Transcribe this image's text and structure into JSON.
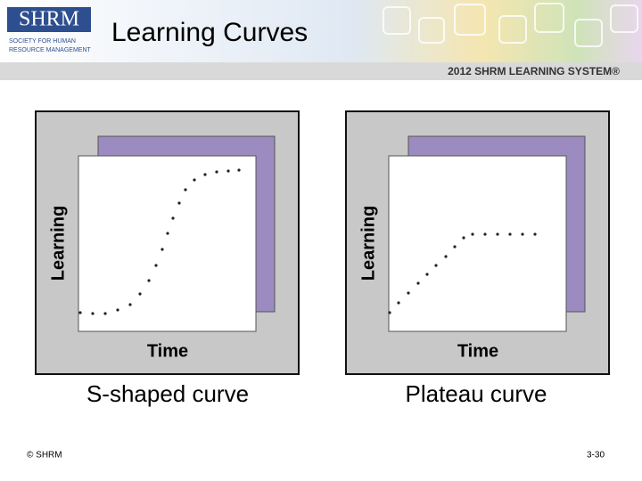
{
  "header": {
    "title": "Learning Curves",
    "logo": "SHRM",
    "logo_subtitle": [
      "SOCIETY FOR HUMAN",
      "RESOURCE MANAGEMENT"
    ],
    "banner": "2012 SHRM LEARNING SYSTEM®"
  },
  "panels": [
    {
      "y_label": "Learning",
      "x_label": "Time",
      "caption": "S-shaped curve"
    },
    {
      "y_label": "Learning",
      "x_label": "Time",
      "caption": "Plateau curve"
    }
  ],
  "footer": {
    "left": "© SHRM",
    "right": "3-30"
  }
}
